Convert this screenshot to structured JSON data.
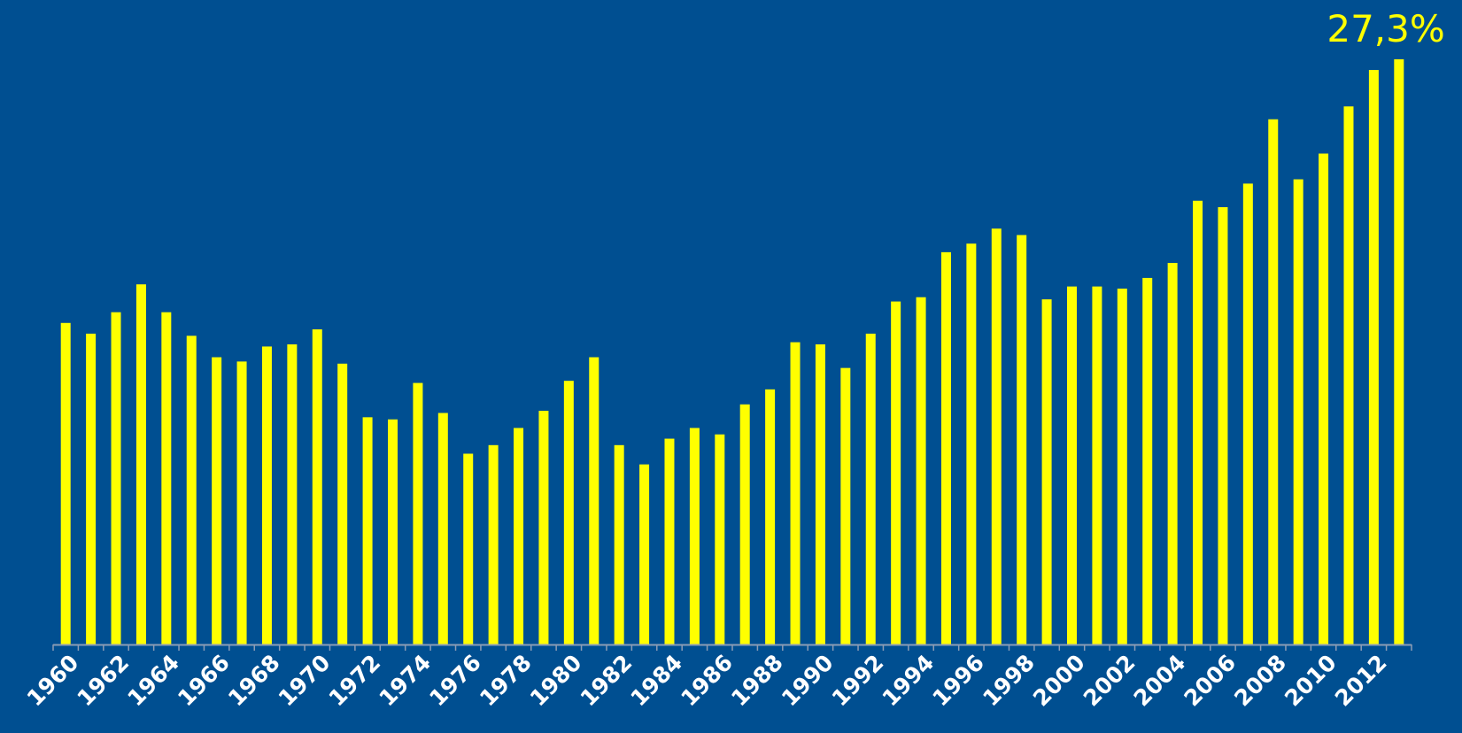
{
  "colors": {
    "background": "#004f91",
    "bar": "#ffff00",
    "axis": "#8c9db5",
    "tick_label": "#ffffff",
    "data_label": "#ffff00"
  },
  "chart_data": {
    "type": "bar",
    "title": "",
    "xlabel": "",
    "ylabel": "",
    "grid": false,
    "legend": "none",
    "ylim": [
      0,
      28
    ],
    "categories": [
      "1960",
      "1961",
      "1962",
      "1963",
      "1964",
      "1965",
      "1966",
      "1967",
      "1968",
      "1969",
      "1970",
      "1971",
      "1972",
      "1973",
      "1974",
      "1975",
      "1976",
      "1977",
      "1978",
      "1979",
      "1980",
      "1981",
      "1982",
      "1983",
      "1984",
      "1985",
      "1986",
      "1987",
      "1988",
      "1989",
      "1990",
      "1991",
      "1992",
      "1993",
      "1994",
      "1995",
      "1996",
      "1997",
      "1998",
      "1999",
      "2000",
      "2001",
      "2002",
      "2003",
      "2004",
      "2005",
      "2006",
      "2007",
      "2008",
      "2009",
      "2010",
      "2011",
      "2012",
      "2013"
    ],
    "values": [
      15.0,
      14.5,
      15.5,
      16.8,
      15.5,
      14.4,
      13.4,
      13.2,
      13.9,
      14.0,
      14.7,
      13.1,
      10.6,
      10.5,
      12.2,
      10.8,
      8.9,
      9.3,
      10.1,
      10.9,
      12.3,
      13.4,
      9.3,
      8.4,
      9.6,
      10.1,
      9.8,
      11.2,
      11.9,
      14.1,
      14.0,
      12.9,
      14.5,
      16.0,
      16.2,
      18.3,
      18.7,
      19.4,
      19.1,
      16.1,
      16.7,
      16.7,
      16.6,
      17.1,
      17.8,
      20.7,
      20.4,
      21.5,
      24.5,
      21.7,
      22.9,
      25.1,
      26.8,
      27.3
    ],
    "tick_labels": [
      "1960",
      "1962",
      "1964",
      "1966",
      "1968",
      "1970",
      "1972",
      "1974",
      "1976",
      "1978",
      "1980",
      "1982",
      "1984",
      "1986",
      "1988",
      "1990",
      "1992",
      "1994",
      "1996",
      "1998",
      "2000",
      "2002",
      "2004",
      "2006",
      "2008",
      "2010",
      "2012"
    ],
    "data_labels": [
      {
        "category": "2013",
        "text": "27,3%"
      }
    ]
  }
}
